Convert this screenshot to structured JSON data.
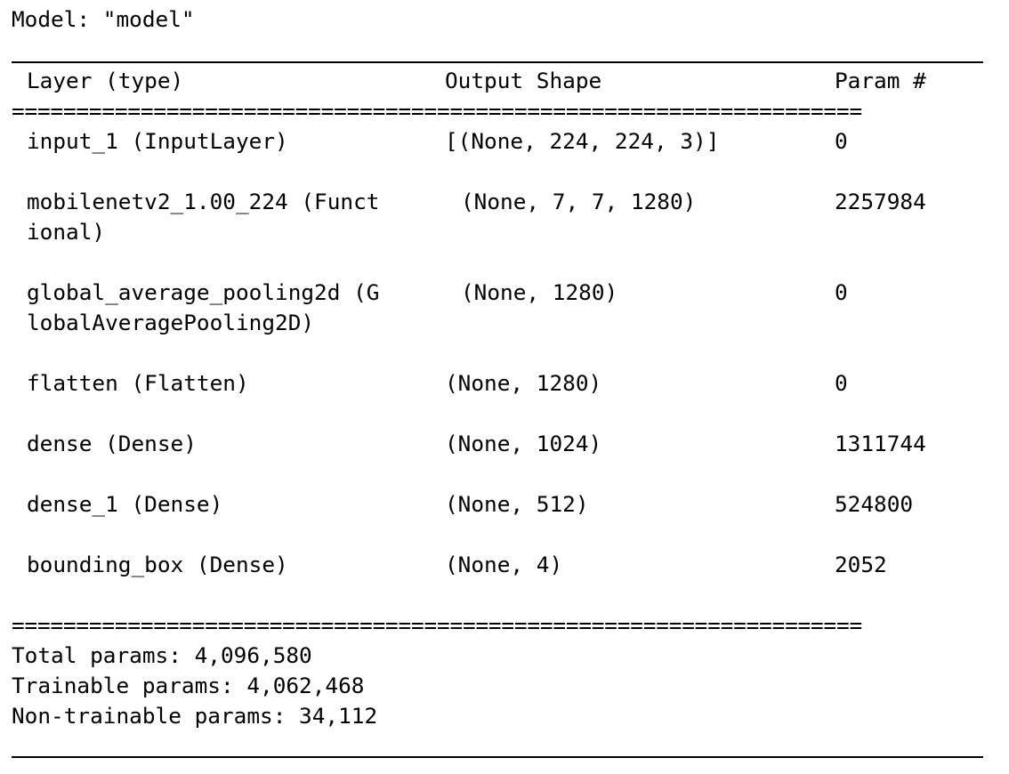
{
  "model_title": "Model: \"model\"",
  "header": {
    "layer": "Layer (type)",
    "output_shape": "Output Shape",
    "param": "Param #"
  },
  "separator": "==================================================================",
  "rows": [
    {
      "layer": "input_1 (InputLayer)",
      "layer_cont": "",
      "shape": "[(None, 224, 224, 3)]",
      "param": "0"
    },
    {
      "layer": "mobilenetv2_1.00_224 (Funct",
      "layer_cont": "ional)",
      "shape": "(None, 7, 7, 1280)",
      "param": "2257984"
    },
    {
      "layer": "global_average_pooling2d (G",
      "layer_cont": "lobalAveragePooling2D)",
      "shape": "(None, 1280)",
      "param": "0"
    },
    {
      "layer": "flatten (Flatten)",
      "layer_cont": "",
      "shape": "(None, 1280)",
      "param": "0"
    },
    {
      "layer": "dense (Dense)",
      "layer_cont": "",
      "shape": "(None, 1024)",
      "param": "1311744"
    },
    {
      "layer": "dense_1 (Dense)",
      "layer_cont": "",
      "shape": "(None, 512)",
      "param": "524800"
    },
    {
      "layer": "bounding_box (Dense)",
      "layer_cont": "",
      "shape": "(None, 4)",
      "param": "2052"
    }
  ],
  "summary": {
    "total": "Total params: 4,096,580",
    "trainable": "Trainable params: 4,062,468",
    "non_trainable": "Non-trainable params: 34,112"
  }
}
